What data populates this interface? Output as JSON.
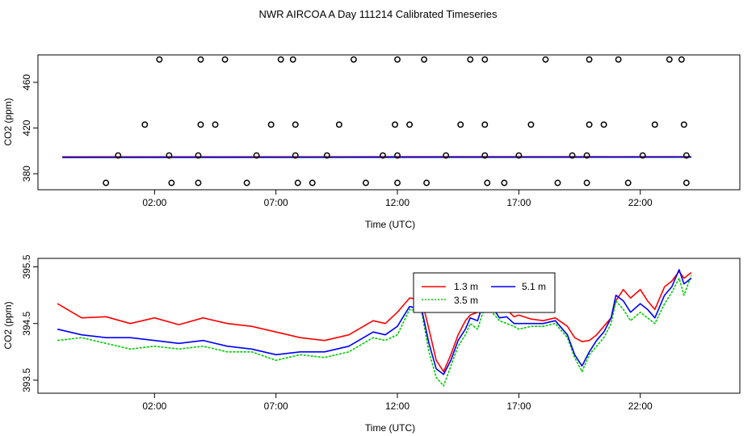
{
  "title": "NWR AIRCOA A  Day 111214  Calibrated Timeseries",
  "chart_data": [
    {
      "type": "scatter",
      "title": "NWR AIRCOA A  Day 111214  Calibrated Timeseries",
      "xlabel": "Time (UTC)",
      "ylabel": "CO2 (ppm)",
      "xlim": [
        -2.8,
        26.1
      ],
      "ylim": [
        366,
        484
      ],
      "xticks": [
        2,
        7,
        12,
        17,
        22
      ],
      "xtick_labels": [
        "02:00",
        "07:00",
        "12:00",
        "17:00",
        "22:00"
      ],
      "yticks": [
        380,
        420,
        460
      ],
      "ytick_labels": [
        "380",
        "420",
        "460"
      ],
      "grid": false,
      "point_series": {
        "name": "",
        "marker": "open circle",
        "x": [
          2.2,
          3.9,
          4.9,
          7.2,
          7.7,
          10.2,
          12.0,
          13.1,
          15.0,
          15.6,
          18.1,
          19.9,
          21.1,
          23.2,
          23.7,
          1.6,
          3.9,
          4.5,
          6.8,
          7.8,
          9.6,
          11.9,
          12.5,
          14.6,
          15.6,
          17.5,
          19.9,
          20.5,
          22.6,
          23.8,
          0.5,
          2.6,
          3.8,
          6.2,
          7.8,
          9.1,
          11.4,
          12.0,
          14.0,
          15.6,
          17.0,
          19.2,
          19.8,
          22.1,
          23.9,
          0.0,
          2.7,
          3.8,
          5.8,
          7.9,
          8.5,
          10.7,
          12.0,
          13.2,
          15.7,
          16.4,
          18.6,
          19.8,
          21.5,
          23.9
        ],
        "y": [
          480,
          480,
          480,
          480,
          480,
          480,
          480,
          480,
          480,
          480,
          480,
          480,
          480,
          480,
          480,
          423,
          423,
          423,
          423,
          423,
          423,
          423,
          423,
          423,
          423,
          423,
          423,
          423,
          423,
          423,
          396,
          396,
          396,
          396,
          396,
          396,
          396,
          396,
          396,
          396,
          396,
          396,
          396,
          396,
          396,
          372,
          372,
          372,
          372,
          372,
          372,
          372,
          372,
          372,
          372,
          372,
          372,
          372,
          372,
          372
        ]
      },
      "series": [
        {
          "name": "",
          "color": "#ff0000",
          "x": [
            -1.8,
            24.1
          ],
          "y": [
            394.8,
            395.0
          ]
        },
        {
          "name": "",
          "color": "#00cc00",
          "x": [
            -1.8,
            24.1
          ],
          "y": [
            394.1,
            394.4
          ]
        },
        {
          "name": "",
          "color": "#0000ff",
          "x": [
            -1.8,
            24.1
          ],
          "y": [
            394.3,
            394.6
          ]
        }
      ]
    },
    {
      "type": "line",
      "title": "",
      "xlabel": "Time (UTC)",
      "ylabel": "CO2 (ppm)",
      "xlim": [
        -2.8,
        26.1
      ],
      "ylim": [
        393.27,
        395.65
      ],
      "xticks": [
        2,
        7,
        12,
        17,
        22
      ],
      "xtick_labels": [
        "02:00",
        "07:00",
        "12:00",
        "17:00",
        "22:00"
      ],
      "yticks": [
        393.5,
        394.5,
        395.5
      ],
      "ytick_labels": [
        "393.5",
        "394.5",
        "395.5"
      ],
      "grid": false,
      "legend_position": "top-center",
      "legend_entries": [
        "1.3 m",
        "3.5 m",
        "5.1 m"
      ],
      "x": [
        -2.0,
        -1.0,
        0.0,
        1.0,
        2.0,
        3.0,
        4.0,
        5.0,
        6.0,
        7.0,
        8.0,
        9.0,
        10.0,
        11.0,
        11.5,
        12.0,
        12.5,
        13.0,
        13.3,
        13.6,
        13.9,
        14.2,
        14.5,
        14.8,
        15.0,
        15.3,
        15.6,
        15.9,
        16.2,
        16.5,
        16.8,
        17.0,
        17.5,
        18.0,
        18.5,
        19.0,
        19.3,
        19.6,
        19.9,
        20.2,
        20.5,
        20.8,
        21.0,
        21.3,
        21.6,
        22.0,
        22.3,
        22.6,
        23.0,
        23.3,
        23.6,
        23.8,
        24.1
      ],
      "series": [
        {
          "name": "1.3 m",
          "color": "#ff0000",
          "y": [
            394.85,
            394.6,
            394.62,
            394.5,
            394.6,
            394.48,
            394.6,
            394.5,
            394.45,
            394.35,
            394.25,
            394.2,
            394.3,
            394.55,
            394.5,
            394.7,
            394.95,
            394.92,
            394.4,
            393.85,
            393.65,
            393.95,
            394.3,
            394.55,
            394.65,
            394.7,
            394.92,
            394.85,
            394.7,
            394.75,
            394.62,
            394.65,
            394.58,
            394.55,
            394.6,
            394.45,
            394.25,
            394.18,
            394.2,
            394.3,
            394.45,
            394.6,
            394.9,
            395.1,
            394.95,
            395.1,
            394.9,
            394.75,
            395.15,
            395.25,
            395.42,
            395.3,
            395.4
          ]
        },
        {
          "name": "3.5 m",
          "color": "#00cc00",
          "y": [
            394.2,
            394.25,
            394.15,
            394.05,
            394.1,
            394.05,
            394.1,
            394.0,
            394.0,
            393.85,
            393.95,
            393.9,
            394.0,
            394.25,
            394.2,
            394.3,
            394.75,
            394.7,
            394.0,
            393.55,
            393.4,
            393.75,
            394.1,
            394.3,
            394.5,
            394.4,
            394.8,
            394.7,
            394.55,
            394.5,
            394.45,
            394.4,
            394.45,
            394.45,
            394.5,
            394.25,
            393.9,
            393.65,
            393.95,
            394.1,
            394.25,
            394.5,
            394.9,
            394.75,
            394.55,
            394.7,
            394.6,
            394.5,
            394.85,
            395.05,
            395.3,
            395.0,
            395.35
          ]
        },
        {
          "name": "5.1 m",
          "color": "#0000ff",
          "y": [
            394.4,
            394.3,
            394.25,
            394.25,
            394.2,
            394.15,
            394.2,
            394.1,
            394.05,
            393.95,
            394.0,
            394.0,
            394.1,
            394.35,
            394.3,
            394.45,
            394.8,
            394.75,
            394.15,
            393.7,
            393.6,
            393.85,
            394.2,
            394.4,
            394.6,
            394.55,
            394.95,
            394.8,
            394.6,
            394.62,
            394.5,
            394.5,
            394.5,
            394.5,
            394.55,
            394.3,
            393.95,
            393.75,
            394.0,
            394.2,
            394.35,
            394.6,
            395.0,
            394.9,
            394.7,
            394.85,
            394.75,
            394.6,
            395.0,
            395.15,
            395.45,
            395.2,
            395.3
          ]
        }
      ]
    }
  ]
}
